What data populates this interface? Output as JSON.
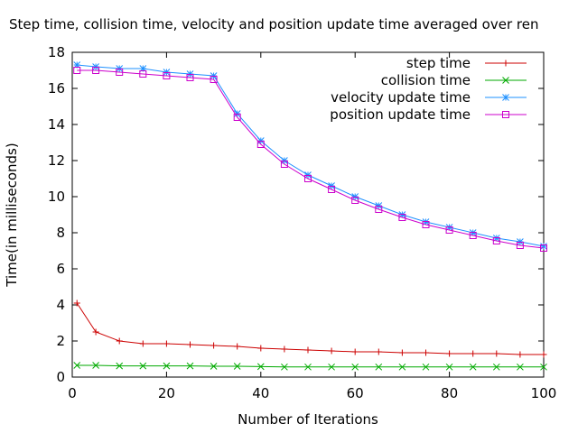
{
  "chart_data": {
    "type": "line",
    "title": "Step time, collision time, velocity and position update time averaged over ren",
    "xlabel": "Number of Iterations",
    "ylabel": "Time(in milliseconds)",
    "xlim": [
      0,
      100
    ],
    "ylim": [
      0,
      18
    ],
    "xticks": [
      0,
      20,
      40,
      60,
      80,
      100
    ],
    "yticks": [
      0,
      2,
      4,
      6,
      8,
      10,
      12,
      14,
      16,
      18
    ],
    "grid": false,
    "legend_position": "top-right",
    "x": [
      1,
      5,
      10,
      15,
      20,
      25,
      30,
      35,
      40,
      45,
      50,
      55,
      60,
      65,
      70,
      75,
      80,
      85,
      90,
      95,
      100
    ],
    "series": [
      {
        "name": "step time",
        "color": "#cc0000",
        "marker": "plus",
        "values": [
          4.1,
          2.5,
          2.0,
          1.85,
          1.85,
          1.8,
          1.75,
          1.7,
          1.6,
          1.55,
          1.5,
          1.45,
          1.4,
          1.4,
          1.35,
          1.35,
          1.3,
          1.3,
          1.3,
          1.25,
          1.25
        ]
      },
      {
        "name": "collision time",
        "color": "#00aa00",
        "marker": "cross",
        "values": [
          0.65,
          0.65,
          0.62,
          0.62,
          0.62,
          0.62,
          0.6,
          0.6,
          0.58,
          0.56,
          0.56,
          0.56,
          0.56,
          0.56,
          0.56,
          0.56,
          0.56,
          0.56,
          0.56,
          0.56,
          0.56
        ]
      },
      {
        "name": "velocity update time",
        "color": "#1e90ff",
        "marker": "star",
        "values": [
          17.3,
          17.2,
          17.1,
          17.1,
          16.9,
          16.8,
          16.7,
          14.6,
          13.1,
          12.0,
          11.2,
          10.6,
          10.0,
          9.5,
          9.0,
          8.6,
          8.3,
          8.0,
          7.7,
          7.5,
          7.25
        ]
      },
      {
        "name": "position update time",
        "color": "#cc00cc",
        "marker": "square",
        "values": [
          17.0,
          17.0,
          16.9,
          16.8,
          16.7,
          16.6,
          16.5,
          14.4,
          12.9,
          11.8,
          11.0,
          10.4,
          9.8,
          9.3,
          8.85,
          8.45,
          8.15,
          7.85,
          7.55,
          7.3,
          7.15
        ]
      }
    ]
  }
}
